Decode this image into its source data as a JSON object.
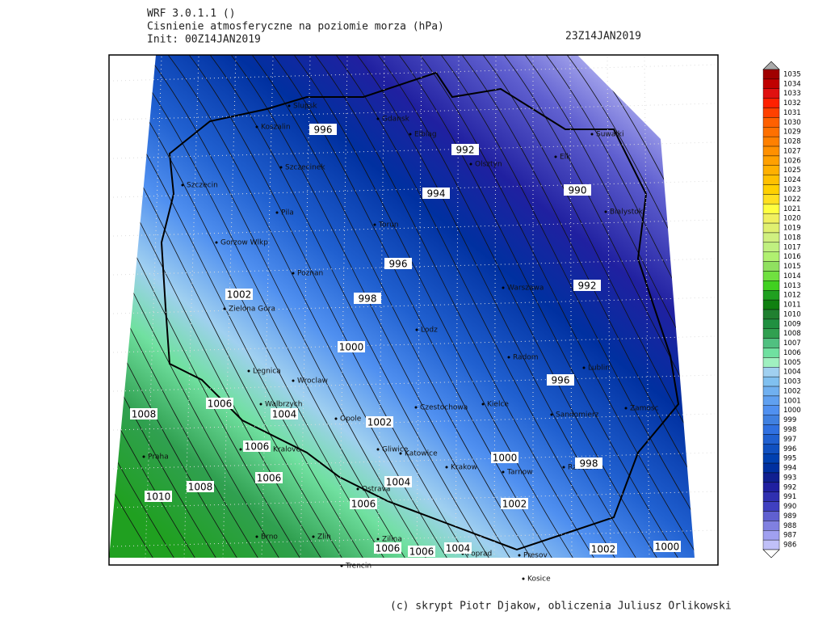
{
  "header": {
    "model": "WRF 3.0.1.1 ()",
    "field": "Cisnienie atmosferyczne na poziomie morza (hPa)",
    "init": "Init: 00Z14JAN2019",
    "valid": "23Z14JAN2019"
  },
  "colorbar": {
    "levels": [
      1035,
      1034,
      1033,
      1032,
      1031,
      1030,
      1029,
      1028,
      1027,
      1026,
      1025,
      1024,
      1023,
      1022,
      1021,
      1020,
      1019,
      1018,
      1017,
      1016,
      1015,
      1014,
      1013,
      1012,
      1011,
      1010,
      1009,
      1008,
      1007,
      1006,
      1005,
      1004,
      1003,
      1002,
      1001,
      1000,
      999,
      998,
      997,
      996,
      995,
      994,
      993,
      992,
      991,
      990,
      989,
      988,
      987,
      986
    ],
    "colors": [
      "#a00000",
      "#c00000",
      "#e01010",
      "#ff2000",
      "#ff4000",
      "#ff6000",
      "#ff7000",
      "#ff8000",
      "#ff9000",
      "#ffa000",
      "#ffb000",
      "#ffc000",
      "#ffd000",
      "#ffe020",
      "#ffff40",
      "#f0f060",
      "#e0f070",
      "#d0f080",
      "#c0f080",
      "#b0f070",
      "#90e060",
      "#70e040",
      "#40d020",
      "#20a020",
      "#108010",
      "#208030",
      "#209040",
      "#30a050",
      "#50c080",
      "#70e0a0",
      "#a0f0c0",
      "#a0d0f0",
      "#80c0f0",
      "#70b0f0",
      "#60a0f0",
      "#5090f0",
      "#4080e0",
      "#3070e0",
      "#2060d0",
      "#1050c0",
      "#0040b0",
      "#0030a0",
      "#102090",
      "#2020a0",
      "#3030b0",
      "#4040c0",
      "#6060d0",
      "#8080e0",
      "#a0a0f0",
      "#c0c0f8"
    ]
  },
  "cities": [
    "Slupsk",
    "Koszalin",
    "Gdansk",
    "Elblag",
    "Szczecinek",
    "Olsztyn",
    "Elk",
    "Suwalki",
    "Szczecin",
    "Pila",
    "Torun",
    "Bialystok",
    "Gorzow Wlkp",
    "Poznan",
    "Warszawa",
    "Zielona Gora",
    "Lodz",
    "Radom",
    "Lublin",
    "Legnica",
    "Wroclaw",
    "Walbrzych",
    "Opole",
    "Czestochowa",
    "Kielce",
    "Sandomierz",
    "Zamosc",
    "Hradec Kralove",
    "Gliwice",
    "Katowice",
    "Praha",
    "Krakow",
    "Tarnow",
    "Rzeszow",
    "Ostrava",
    "Brno",
    "Zlin",
    "Zilina",
    "Poprad",
    "Presov",
    "Trencin",
    "Kosice"
  ],
  "contour_labels": [
    996,
    992,
    994,
    990,
    996,
    1002,
    998,
    992,
    1000,
    996,
    1006,
    1008,
    1004,
    1002,
    1006,
    1000,
    998,
    1006,
    1004,
    1010,
    1008,
    1006,
    1002,
    1006,
    1006,
    1004,
    1002,
    1000
  ],
  "footer": "(c) skrypt Piotr Djakow, obliczenia Juliusz Orlikowski"
}
